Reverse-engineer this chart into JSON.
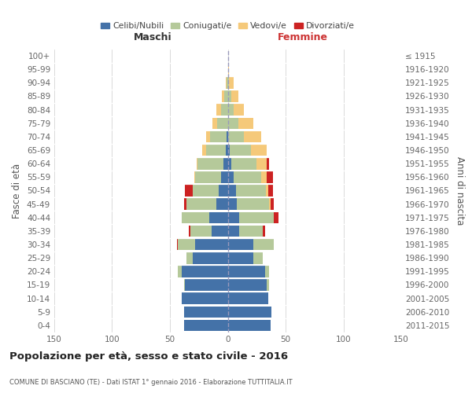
{
  "age_groups": [
    "0-4",
    "5-9",
    "10-14",
    "15-19",
    "20-24",
    "25-29",
    "30-34",
    "35-39",
    "40-44",
    "45-49",
    "50-54",
    "55-59",
    "60-64",
    "65-69",
    "70-74",
    "75-79",
    "80-84",
    "85-89",
    "90-94",
    "95-99",
    "100+"
  ],
  "birth_years": [
    "2011-2015",
    "2006-2010",
    "2001-2005",
    "1996-2000",
    "1991-1995",
    "1986-1990",
    "1981-1985",
    "1976-1980",
    "1971-1975",
    "1966-1970",
    "1961-1965",
    "1956-1960",
    "1951-1955",
    "1946-1950",
    "1941-1945",
    "1936-1940",
    "1931-1935",
    "1926-1930",
    "1921-1925",
    "1916-1920",
    "≤ 1915"
  ],
  "maschi": {
    "celibi": [
      38,
      38,
      40,
      37,
      40,
      30,
      28,
      14,
      16,
      10,
      8,
      6,
      4,
      2,
      1,
      0,
      0,
      0,
      0,
      0,
      0
    ],
    "coniugati": [
      0,
      0,
      0,
      1,
      3,
      6,
      15,
      18,
      24,
      26,
      22,
      22,
      22,
      17,
      14,
      9,
      6,
      3,
      1,
      0,
      0
    ],
    "vedovi": [
      0,
      0,
      0,
      0,
      0,
      0,
      0,
      0,
      0,
      0,
      0,
      1,
      1,
      3,
      4,
      4,
      4,
      2,
      1,
      0,
      0
    ],
    "divorziati": [
      0,
      0,
      0,
      0,
      0,
      0,
      1,
      2,
      0,
      2,
      7,
      0,
      0,
      0,
      0,
      0,
      0,
      0,
      0,
      0,
      0
    ]
  },
  "femmine": {
    "nubili": [
      37,
      38,
      35,
      34,
      32,
      22,
      22,
      10,
      10,
      8,
      7,
      5,
      3,
      2,
      0,
      0,
      0,
      0,
      0,
      0,
      0
    ],
    "coniugate": [
      0,
      0,
      0,
      2,
      4,
      8,
      18,
      20,
      30,
      28,
      26,
      24,
      22,
      18,
      14,
      9,
      5,
      3,
      1,
      0,
      0
    ],
    "vedove": [
      0,
      0,
      0,
      0,
      0,
      0,
      0,
      0,
      0,
      1,
      2,
      5,
      9,
      14,
      15,
      13,
      9,
      6,
      4,
      1,
      0
    ],
    "divorziate": [
      0,
      0,
      0,
      0,
      0,
      0,
      0,
      2,
      4,
      3,
      4,
      5,
      2,
      0,
      0,
      0,
      0,
      0,
      0,
      0,
      0
    ]
  },
  "colors": {
    "celibi_nubili": "#4472a8",
    "coniugati": "#b5c99a",
    "vedovi": "#f5c97a",
    "divorziati": "#cc2222"
  },
  "title": "Popolazione per età, sesso e stato civile - 2016",
  "subtitle": "COMUNE DI BASCIANO (TE) - Dati ISTAT 1° gennaio 2016 - Elaborazione TUTTITALIA.IT",
  "xlabel_left": "Maschi",
  "xlabel_right": "Femmine",
  "ylabel_left": "Fasce di età",
  "ylabel_right": "Anni di nascita",
  "xlim": 150,
  "xticks": [
    -150,
    -100,
    -50,
    0,
    50,
    100,
    150
  ],
  "xticklabels": [
    "150",
    "100",
    "50",
    "0",
    "50",
    "100",
    "150"
  ],
  "legend_labels": [
    "Celibi/Nubili",
    "Coniugati/e",
    "Vedovi/e",
    "Divorziati/e"
  ],
  "bg_color": "#ffffff",
  "grid_color": "#cccccc"
}
